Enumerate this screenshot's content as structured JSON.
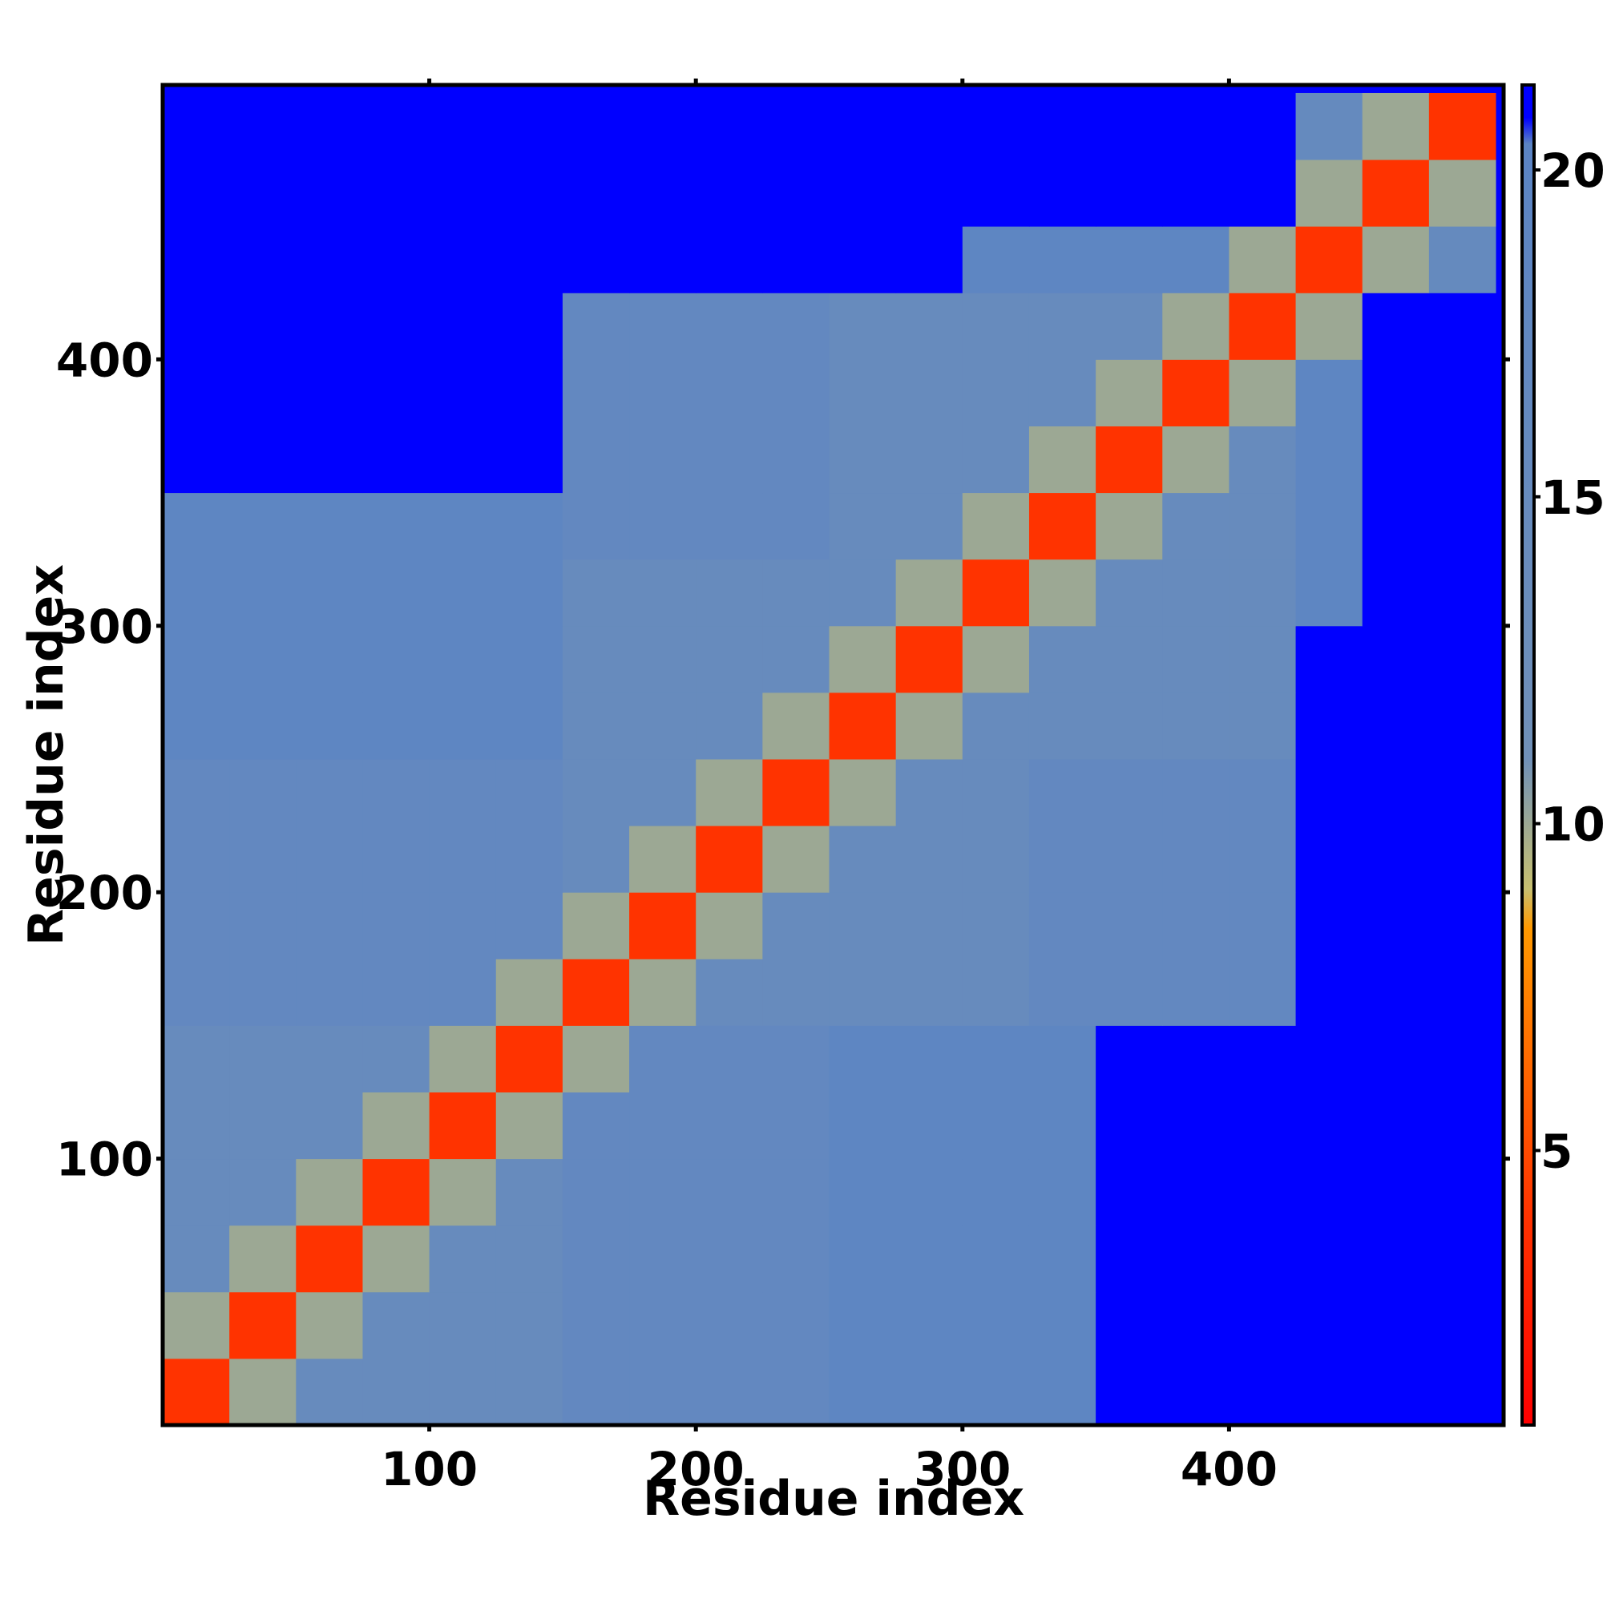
{
  "chart_data": {
    "type": "heatmap",
    "x_label": "Residue index",
    "y_label": "Residue index",
    "xlim": [
      0,
      503
    ],
    "ylim": [
      0,
      503
    ],
    "xticks": [
      100,
      200,
      300,
      400
    ],
    "yticks": [
      100,
      200,
      300,
      400
    ],
    "bins": [
      0,
      25,
      50,
      75,
      100,
      125,
      150,
      175,
      200,
      225,
      250,
      275,
      300,
      325,
      350,
      375,
      400,
      425,
      450,
      475,
      500
    ],
    "clim": [
      0.8,
      21.3
    ],
    "cticks": [
      5,
      10,
      15,
      20
    ],
    "colorscale": [
      {
        "value": 0.8,
        "color": "#ff0000"
      },
      {
        "value": 4,
        "color": "#ff3300"
      },
      {
        "value": 8.4,
        "color": "#ff9900"
      },
      {
        "value": 9,
        "color": "#c8c070"
      },
      {
        "value": 11,
        "color": "#7090b8"
      },
      {
        "value": 20.4,
        "color": "#5b84c4"
      },
      {
        "value": 20.8,
        "color": "#0000ff"
      },
      {
        "value": 21.3,
        "color": "#0000ff"
      }
    ],
    "z": [
      [
        4,
        10,
        15,
        15,
        15,
        15,
        17,
        17,
        17,
        17,
        19,
        19,
        19,
        19,
        21,
        21,
        21,
        21,
        21,
        21
      ],
      [
        10,
        4,
        10,
        15,
        15,
        15,
        17,
        17,
        17,
        17,
        19,
        19,
        19,
        19,
        21,
        21,
        21,
        21,
        21,
        21
      ],
      [
        15,
        10,
        4,
        10,
        15,
        15,
        17,
        17,
        17,
        17,
        19,
        19,
        19,
        19,
        21,
        21,
        21,
        21,
        21,
        21
      ],
      [
        15,
        15,
        10,
        4,
        10,
        15,
        17,
        17,
        17,
        17,
        19,
        19,
        19,
        19,
        21,
        21,
        21,
        21,
        21,
        21
      ],
      [
        15,
        15,
        15,
        10,
        4,
        10,
        17,
        17,
        17,
        17,
        19,
        19,
        19,
        19,
        21,
        21,
        21,
        21,
        21,
        21
      ],
      [
        15,
        15,
        15,
        15,
        10,
        4,
        10,
        17,
        17,
        17,
        19,
        19,
        19,
        19,
        21,
        21,
        21,
        21,
        21,
        21
      ],
      [
        17,
        17,
        17,
        17,
        17,
        10,
        4,
        10,
        15,
        15,
        15,
        15,
        15,
        17,
        17,
        17,
        17,
        21,
        21,
        21
      ],
      [
        17,
        17,
        17,
        17,
        17,
        17,
        10,
        4,
        10,
        15,
        15,
        15,
        15,
        17,
        17,
        17,
        17,
        21,
        21,
        21
      ],
      [
        17,
        17,
        17,
        17,
        17,
        17,
        15,
        10,
        4,
        10,
        15,
        15,
        15,
        17,
        17,
        17,
        17,
        21,
        21,
        21
      ],
      [
        17,
        17,
        17,
        17,
        17,
        17,
        15,
        15,
        10,
        4,
        10,
        15,
        15,
        17,
        17,
        17,
        17,
        21,
        21,
        21
      ],
      [
        19,
        19,
        19,
        19,
        19,
        19,
        15,
        15,
        15,
        10,
        4,
        10,
        15,
        15,
        15,
        15,
        15,
        21,
        21,
        21
      ],
      [
        19,
        19,
        19,
        19,
        19,
        19,
        15,
        15,
        15,
        15,
        10,
        4,
        10,
        15,
        15,
        15,
        15,
        21,
        21,
        21
      ],
      [
        19,
        19,
        19,
        19,
        19,
        19,
        15,
        15,
        15,
        15,
        15,
        10,
        4,
        10,
        15,
        15,
        15,
        19,
        21,
        21
      ],
      [
        19,
        19,
        19,
        19,
        19,
        19,
        17,
        17,
        17,
        17,
        15,
        15,
        10,
        4,
        10,
        15,
        15,
        19,
        21,
        21
      ],
      [
        21,
        21,
        21,
        21,
        21,
        21,
        17,
        17,
        17,
        17,
        15,
        15,
        15,
        10,
        4,
        10,
        15,
        19,
        21,
        21
      ],
      [
        21,
        21,
        21,
        21,
        21,
        21,
        17,
        17,
        17,
        17,
        15,
        15,
        15,
        15,
        10,
        4,
        10,
        19,
        21,
        21
      ],
      [
        21,
        21,
        21,
        21,
        21,
        21,
        17,
        17,
        17,
        17,
        15,
        15,
        15,
        15,
        15,
        10,
        4,
        10,
        21,
        21
      ],
      [
        21,
        21,
        21,
        21,
        21,
        21,
        21,
        21,
        21,
        21,
        21,
        21,
        19,
        19,
        19,
        19,
        10,
        4,
        10,
        16
      ],
      [
        21,
        21,
        21,
        21,
        21,
        21,
        21,
        21,
        21,
        21,
        21,
        21,
        21,
        21,
        21,
        21,
        21,
        10,
        4,
        10
      ],
      [
        21,
        21,
        21,
        21,
        21,
        21,
        21,
        21,
        21,
        21,
        21,
        21,
        21,
        21,
        21,
        21,
        21,
        16,
        10,
        4
      ]
    ]
  }
}
